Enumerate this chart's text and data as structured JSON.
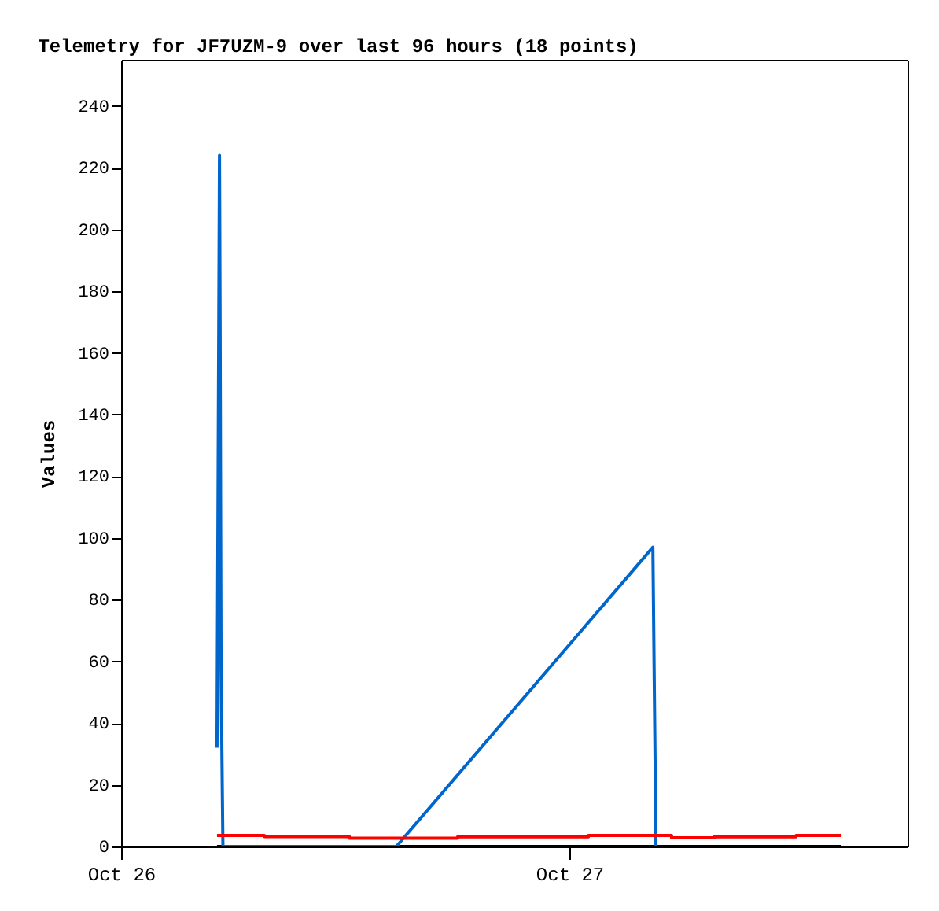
{
  "chart_data": {
    "type": "line",
    "title": "Telemetry for JF7UZM-9 over last 96 hours (18 points)",
    "ylabel": "Values",
    "xlim": [
      "--10-26T00:00",
      "--10-27T18:06"
    ],
    "xticks": [
      {
        "value": "--10-26",
        "label": "Oct 26"
      },
      {
        "value": "--10-27",
        "label": "Oct 27"
      }
    ],
    "ylim": [
      0,
      255
    ],
    "yticks": [
      0,
      20,
      40,
      60,
      80,
      100,
      120,
      140,
      160,
      180,
      200,
      220,
      240
    ],
    "grid": false,
    "marker": "none",
    "series": [
      {
        "color": "#000000",
        "x": [
          "--10-26T05:08",
          "--10-27T14:34"
        ],
        "values": [
          0,
          0
        ]
      },
      {
        "color": "#0066cc",
        "x": [
          "--10-26T05:08",
          "--10-26T05:12",
          "--10-26T05:16",
          "--10-26T05:18",
          "--10-26T05:21",
          "--10-26T05:27",
          "--10-26T14:44",
          "--10-27T04:28",
          "--10-27T04:33",
          "--10-27T04:38"
        ],
        "values": [
          32,
          128,
          224,
          168,
          57,
          0,
          0,
          97,
          48,
          0
        ]
      },
      {
        "type": "step",
        "color": "#ff0000",
        "x": [
          "--10-26T05:08",
          "--10-26T07:40",
          "--10-26T12:13",
          "--10-26T18:01",
          "--10-27T01:01",
          "--10-27T05:19",
          "--10-27T05:28",
          "--10-27T07:45",
          "--10-27T12:08",
          "--10-27T14:34"
        ],
        "values": [
          3.6,
          3.2,
          2.7,
          3.1,
          3.6,
          3.6,
          2.8,
          3.1,
          3.6,
          3.6
        ]
      }
    ]
  }
}
